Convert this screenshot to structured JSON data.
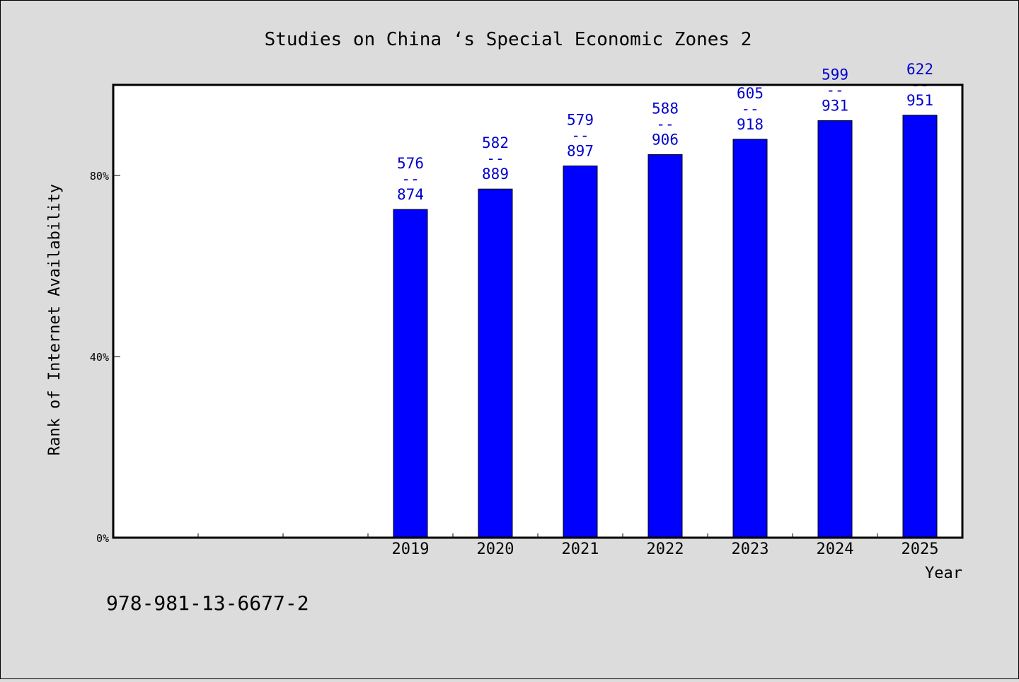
{
  "chart_data": {
    "type": "bar",
    "title": "Studies on China ‘s Special Economic Zones 2",
    "xlabel": "Year",
    "ylabel": "Rank of Internet Availability",
    "x_slots": 10,
    "categories": [
      "2019",
      "2020",
      "2021",
      "2022",
      "2023",
      "2024",
      "2025"
    ],
    "series": [
      {
        "values": [
          0.725,
          0.77,
          0.821,
          0.846,
          0.88,
          0.921,
          0.933
        ]
      }
    ],
    "data_labels": [
      {
        "top": "576",
        "sep": "--",
        "bottom": "874"
      },
      {
        "top": "582",
        "sep": "--",
        "bottom": "889"
      },
      {
        "top": "579",
        "sep": "--",
        "bottom": "897"
      },
      {
        "top": "588",
        "sep": "--",
        "bottom": "906"
      },
      {
        "top": "605",
        "sep": "--",
        "bottom": "918"
      },
      {
        "top": "599",
        "sep": "--",
        "bottom": "931"
      },
      {
        "top": "622",
        "sep": "--",
        "bottom": "951"
      }
    ],
    "yticks": [
      {
        "value": 0,
        "label": "0%"
      },
      {
        "value": 0.4,
        "label": "40%"
      },
      {
        "value": 0.8,
        "label": "80%"
      }
    ],
    "ylim": [
      0,
      1
    ],
    "grid": false,
    "colors": {
      "background": "#dcdcdc",
      "plot_bg": "#ffffff",
      "bar_fill": "#0000ff",
      "bar_edge": "#000000",
      "label_color": "#0000cc",
      "axis": "#000000"
    }
  },
  "isbn": "978-981-13-6677-2"
}
